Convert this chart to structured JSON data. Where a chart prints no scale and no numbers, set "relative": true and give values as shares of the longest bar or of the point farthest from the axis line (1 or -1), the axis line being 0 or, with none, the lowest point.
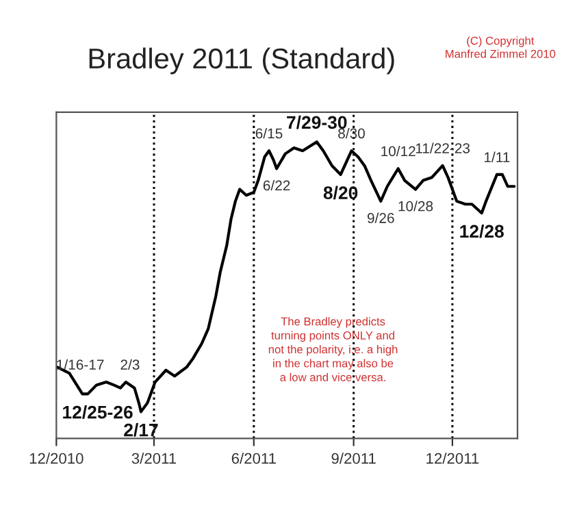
{
  "chart_data": {
    "type": "line",
    "title": "Bradley 2011 (Standard)",
    "relative": true,
    "grid": false,
    "marker": "none",
    "line_style": "solid",
    "tick_labels": "x",
    "x": [
      "2010-12-02",
      "2010-12-13",
      "2010-12-25",
      "2010-12-30",
      "2011-01-07",
      "2011-01-16",
      "2011-01-23",
      "2011-01-29",
      "2011-02-03",
      "2011-02-11",
      "2011-02-15",
      "2011-02-17",
      "2011-02-23",
      "2011-03-02",
      "2011-03-12",
      "2011-03-20",
      "2011-03-31",
      "2011-04-06",
      "2011-04-14",
      "2011-04-20",
      "2011-04-27",
      "2011-05-01",
      "2011-05-07",
      "2011-05-11",
      "2011-05-15",
      "2011-05-19",
      "2011-05-25",
      "2011-06-01",
      "2011-06-05",
      "2011-06-11",
      "2011-06-15",
      "2011-06-19",
      "2011-06-22",
      "2011-06-30",
      "2011-07-08",
      "2011-07-16",
      "2011-07-29",
      "2011-08-04",
      "2011-08-12",
      "2011-08-20",
      "2011-08-30",
      "2011-09-05",
      "2011-09-11",
      "2011-09-17",
      "2011-09-26",
      "2011-10-02",
      "2011-10-12",
      "2011-10-18",
      "2011-10-28",
      "2011-11-04",
      "2011-11-12",
      "2011-11-22",
      "2011-11-27",
      "2011-12-05",
      "2011-12-13",
      "2011-12-19",
      "2011-12-28",
      "2012-01-01",
      "2012-01-11",
      "2012-01-16",
      "2012-01-21",
      "2012-01-27"
    ],
    "series": [
      {
        "color": "#000000",
        "values": [
          0.24,
          0.22,
          0.15,
          0.15,
          0.18,
          0.19,
          0.18,
          0.17,
          0.19,
          0.17,
          0.12,
          0.09,
          0.12,
          0.19,
          0.23,
          0.21,
          0.24,
          0.27,
          0.32,
          0.37,
          0.48,
          0.56,
          0.65,
          0.74,
          0.8,
          0.84,
          0.82,
          0.83,
          0.87,
          0.95,
          0.97,
          0.94,
          0.91,
          0.96,
          0.98,
          0.97,
          1.0,
          0.97,
          0.92,
          0.89,
          0.97,
          0.95,
          0.92,
          0.87,
          0.8,
          0.85,
          0.91,
          0.87,
          0.84,
          0.87,
          0.88,
          0.92,
          0.88,
          0.8,
          0.79,
          0.79,
          0.76,
          0.8,
          0.89,
          0.89,
          0.85,
          0.85
        ]
      }
    ],
    "xlim": [
      "2010-12-01",
      "2012-01-30"
    ],
    "xticks": [
      {
        "value": "2010-12-01",
        "label": "12/2010"
      },
      {
        "value": "2011-03-01",
        "label": "3/2011"
      },
      {
        "value": "2011-06-01",
        "label": "6/2011"
      },
      {
        "value": "2011-09-01",
        "label": "9/2011"
      },
      {
        "value": "2011-12-01",
        "label": "12/2011"
      }
    ],
    "ref_lines": [
      {
        "axis": "x",
        "value": "2011-03-01",
        "color": "#000000",
        "line_style": "dotted"
      },
      {
        "axis": "x",
        "value": "2011-06-01",
        "color": "#000000",
        "line_style": "dotted"
      },
      {
        "axis": "x",
        "value": "2011-09-01",
        "color": "#000000",
        "line_style": "dotted"
      },
      {
        "axis": "x",
        "value": "2011-12-01",
        "color": "#000000",
        "line_style": "dotted"
      }
    ],
    "annotations": [
      {
        "text": "12/25-26",
        "x": "2010-12-25",
        "y": 0.15
      },
      {
        "text": "1/16-17",
        "x": "2011-01-16",
        "y": 0.19
      },
      {
        "text": "2/3",
        "x": "2011-02-03",
        "y": 0.19
      },
      {
        "text": "2/17",
        "x": "2011-02-17",
        "y": 0.09
      },
      {
        "text": "6/15",
        "x": "2011-06-15",
        "y": 0.97
      },
      {
        "text": "6/22",
        "x": "2011-06-22",
        "y": 0.91
      },
      {
        "text": "7/29-30",
        "x": "2011-07-29",
        "y": 1.0
      },
      {
        "text": "8/20",
        "x": "2011-08-20",
        "y": 0.89
      },
      {
        "text": "8/30",
        "x": "2011-08-30",
        "y": 0.97
      },
      {
        "text": "9/26",
        "x": "2011-09-26",
        "y": 0.8
      },
      {
        "text": "10/12",
        "x": "2011-10-12",
        "y": 0.91
      },
      {
        "text": "10/28",
        "x": "2011-10-28",
        "y": 0.84
      },
      {
        "text": "11/22-23",
        "x": "2011-11-22",
        "y": 0.92
      },
      {
        "text": "12/28",
        "x": "2011-12-28",
        "y": 0.76
      },
      {
        "text": "1/11",
        "x": "2012-01-11",
        "y": 0.89
      },
      "The Bradley predicts\nturning points ONLY and\nnot the polarity, i.e. a high\nin the chart may also be\na low and vice versa.",
      "(C) Copyright\nManfred Zimmel 2010"
    ]
  }
}
